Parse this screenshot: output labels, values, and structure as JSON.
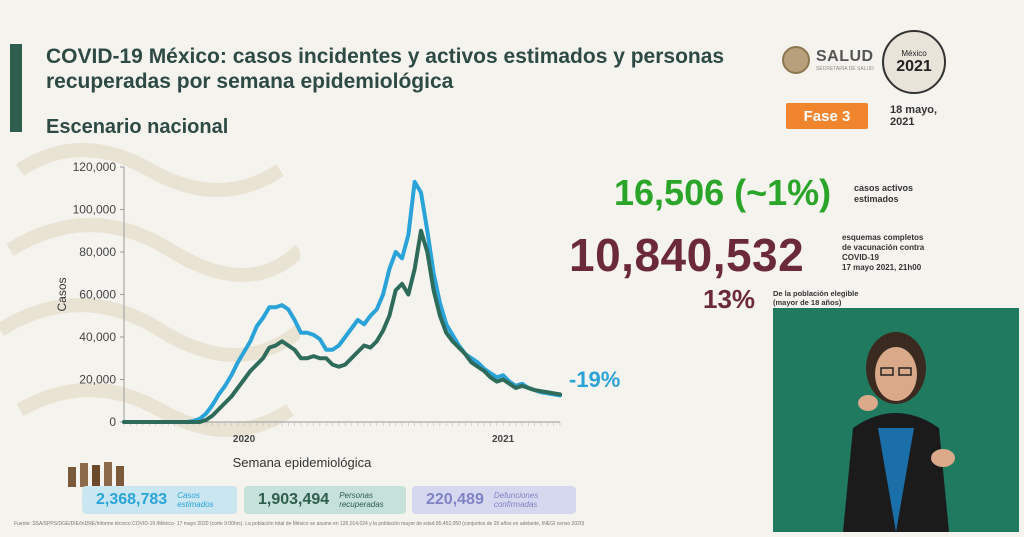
{
  "header": {
    "title": "COVID-19 México: casos incidentes y activos estimados y personas recuperadas por semana epidemiológica",
    "subtitle": "Escenario nacional"
  },
  "logos": {
    "salud": "SALUD",
    "salud_sub": "SECRETARÍA DE SALUD",
    "mexico_year": "2021",
    "mexico_text": "México"
  },
  "phase": "Fase 3",
  "date_line1": "18 mayo,",
  "date_line2": "2021",
  "kpis": {
    "active_value": "16,506 (~1%)",
    "active_caption_1": "casos activos",
    "active_caption_2": "estimados",
    "vacc_value": "10,840,532",
    "vacc_caption_1": "esquemas completos",
    "vacc_caption_2": "de vacunación contra",
    "vacc_caption_3": "COVID-19",
    "vacc_caption_4": "17 mayo 2021, 21h00",
    "pct_value": "13%",
    "pct_caption_1": "De la población elegible",
    "pct_caption_2": "(mayor de 18 años)",
    "change_value": "-19%"
  },
  "stats": [
    {
      "value": "2,368,783",
      "label_1": "Casos",
      "label_2": "estimados"
    },
    {
      "value": "1,903,494",
      "label_1": "Personas",
      "label_2": "recuperadas"
    },
    {
      "value": "220,489",
      "label_1": "Defunciones",
      "label_2": "confirmadas"
    }
  ],
  "footnote": "Fuente: SSA/SPPS/DGE/DIE/InDRE/Informe técnico.COVID-19 /México- 17 mayo 2020 (corte 9:00hrs). La población total de México se asume en 126,014,024 y la población mayor de edad 85,452,050 (conjuntos de 20 años en adelante, INEGI censo 2020)",
  "colors": {
    "estimated": "#2aa3d8",
    "recovered": "#2e6b5a",
    "green_kpi": "#2aa52a",
    "maroon_kpi": "#6b2a3a",
    "phase_bg": "#f0852d"
  },
  "chart_data": {
    "type": "line",
    "xlabel": "Semana epidemiológica",
    "ylabel": "Casos",
    "ylim": [
      0,
      120000
    ],
    "yticks": [
      0,
      20000,
      40000,
      60000,
      80000,
      100000,
      120000
    ],
    "ytick_labels": [
      "0",
      "20,000",
      "40,000",
      "60,000",
      "80,000",
      "100,000",
      "120,000"
    ],
    "year_labels": [
      {
        "label": "2020",
        "week_index": 19
      },
      {
        "label": "2021",
        "week_index": 60
      }
    ],
    "x": [
      0,
      1,
      2,
      3,
      4,
      5,
      6,
      7,
      8,
      9,
      10,
      11,
      12,
      13,
      14,
      15,
      16,
      17,
      18,
      19,
      20,
      21,
      22,
      23,
      24,
      25,
      26,
      27,
      28,
      29,
      30,
      31,
      32,
      33,
      34,
      35,
      36,
      37,
      38,
      39,
      40,
      41,
      42,
      43,
      44,
      45,
      46,
      47,
      48,
      49,
      50,
      51,
      52,
      53,
      54,
      55,
      56,
      57,
      58,
      59,
      60,
      61,
      62,
      63,
      64,
      65,
      66,
      67,
      68,
      69
    ],
    "series": [
      {
        "name": "",
        "role": "estimated",
        "values": [
          0,
          0,
          0,
          0,
          0,
          0,
          0,
          0,
          0,
          0,
          0,
          500,
          1500,
          4000,
          8000,
          13000,
          17000,
          22000,
          28000,
          33000,
          38000,
          45000,
          49000,
          54000,
          54000,
          55000,
          53000,
          48000,
          42000,
          42000,
          41000,
          39000,
          34000,
          34000,
          36000,
          40000,
          44000,
          48000,
          46000,
          50000,
          53000,
          60000,
          72000,
          80000,
          77000,
          88000,
          113000,
          108000,
          90000,
          70000,
          56000,
          46000,
          41000,
          36000,
          32000,
          30000,
          28000,
          25000,
          23000,
          21000,
          22000,
          19000,
          17000,
          18000,
          16000,
          15000,
          14000,
          13500,
          13000,
          12500
        ]
      },
      {
        "name": "",
        "role": "recovered",
        "values": [
          0,
          0,
          0,
          0,
          0,
          0,
          0,
          0,
          0,
          0,
          0,
          0,
          0,
          1000,
          3000,
          6000,
          9000,
          12000,
          16000,
          20000,
          24000,
          27000,
          30000,
          35000,
          36000,
          38000,
          36000,
          34000,
          30000,
          30000,
          31000,
          30000,
          30000,
          27000,
          26000,
          27000,
          30000,
          33000,
          36000,
          35000,
          38000,
          43000,
          50000,
          62000,
          65000,
          60000,
          72000,
          90000,
          80000,
          62000,
          50000,
          42000,
          38000,
          35000,
          32000,
          28000,
          26000,
          24000,
          21000,
          19000,
          20000,
          18000,
          16000,
          17000,
          16000,
          15000,
          14500,
          14000,
          13500,
          13000
        ]
      }
    ]
  }
}
